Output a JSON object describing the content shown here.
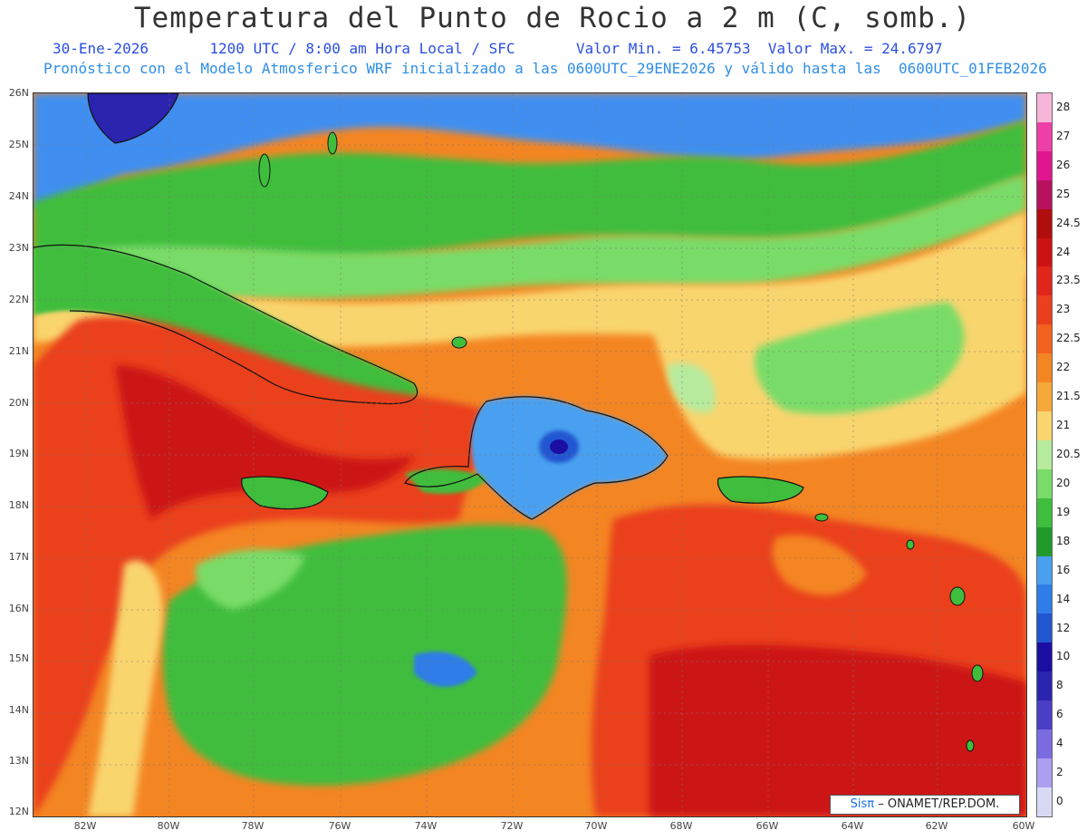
{
  "header": {
    "title": "Temperatura del Punto de Rocio a 2 m (C, somb.)",
    "date": "30-Ene-2026",
    "time": "1200 UTC / 8:00 am Hora Local / SFC",
    "min_label": "Valor Min. = 6.45753",
    "max_label": "Valor Max. = 24.6797",
    "subtitle": "Pronóstico con el Modelo Atmosferico WRF inicializado a las 0600UTC_29ENE2026 y válido hasta las  0600UTC_01FEB2026"
  },
  "map": {
    "lat_labels": [
      "26N",
      "25N",
      "24N",
      "23N",
      "22N",
      "21N",
      "20N",
      "19N",
      "18N",
      "17N",
      "16N",
      "15N",
      "14N",
      "13N",
      "12N"
    ],
    "lon_labels": [
      "82W",
      "80W",
      "78W",
      "76W",
      "74W",
      "72W",
      "70W",
      "68W",
      "66W",
      "64W",
      "62W",
      "60W"
    ],
    "credit_brand": "Sisπ",
    "credit_text": "– ONAMET/REP.DOM."
  },
  "colorbar": {
    "labels": [
      "28",
      "27",
      "26",
      "25",
      "24.5",
      "24",
      "23.5",
      "23",
      "22.5",
      "22",
      "21.5",
      "21",
      "20.5",
      "20",
      "19",
      "18",
      "16",
      "14",
      "12",
      "10",
      "8",
      "6",
      "4",
      "2",
      "0"
    ],
    "colors": [
      "#f7b6d9",
      "#ee3fa6",
      "#e0168f",
      "#b8125f",
      "#b00d0d",
      "#cc1212",
      "#e0261a",
      "#ea3f1d",
      "#f2621e",
      "#f48523",
      "#f7a83a",
      "#f9d56e",
      "#b6eb9e",
      "#79dc68",
      "#3fbd3c",
      "#1f9a2a",
      "#4aa0f0",
      "#2f7de8",
      "#2157d0",
      "#1b0fa3",
      "#2a24ae",
      "#4a3ec5",
      "#7b6be0",
      "#ad9ff0",
      "#d9d9f6"
    ]
  }
}
